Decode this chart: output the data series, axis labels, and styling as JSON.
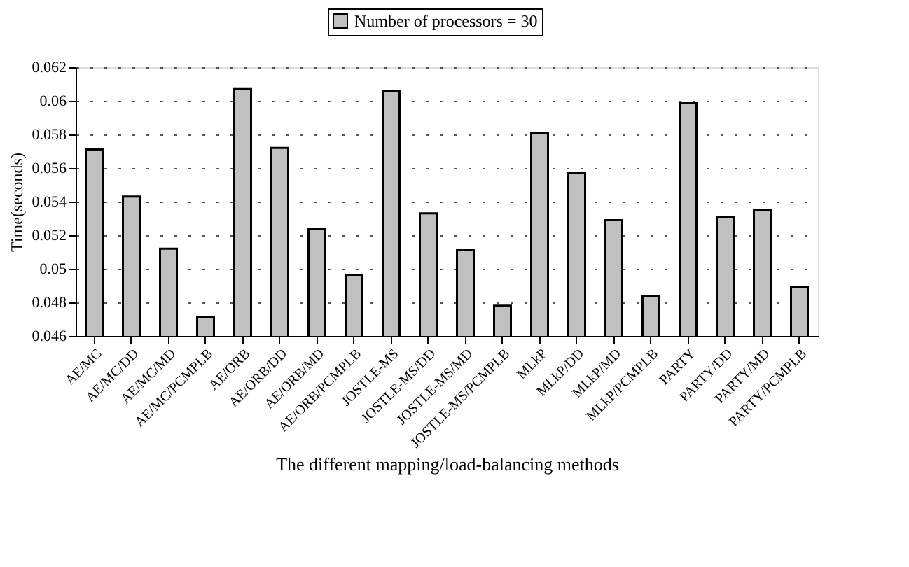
{
  "chart_data": {
    "type": "bar",
    "xlabel": "The different mapping/load-balancing methods",
    "ylabel": "Time(seconds)",
    "categories": [
      "AE/MC",
      "AE/MC/DD",
      "AE/MC/MD",
      "AE/MC/PCMPLB",
      "AE/ORB",
      "AE/ORB/DD",
      "AE/ORB/MD",
      "AE/ORB/PCMPLB",
      "JOSTLE-MS",
      "JOSTLE-MS/DD",
      "JOSTLE-MS/MD",
      "JOSTLE-MS/PCMPLB",
      "MLkP",
      "MLkP/DD",
      "MLkP/MD",
      "MLkP/PCMPLB",
      "PARTY",
      "PARTY/DD",
      "PARTY/MD",
      "PARTY/PCMPLB"
    ],
    "series": [
      {
        "name": "Number of processors = 30",
        "color": "#c0c0c0",
        "values": [
          0.0571,
          0.0543,
          0.0512,
          0.0471,
          0.0607,
          0.0572,
          0.0524,
          0.0496,
          0.0606,
          0.0533,
          0.0511,
          0.0478,
          0.0581,
          0.0557,
          0.0529,
          0.0484,
          0.0599,
          0.0531,
          0.0535,
          0.0489
        ]
      }
    ],
    "ylim": [
      0.046,
      0.062
    ],
    "yticks": [
      0.046,
      0.048,
      0.05,
      0.052,
      0.054,
      0.056,
      0.058,
      0.06,
      0.062
    ],
    "grid": "y",
    "legend": "top"
  }
}
